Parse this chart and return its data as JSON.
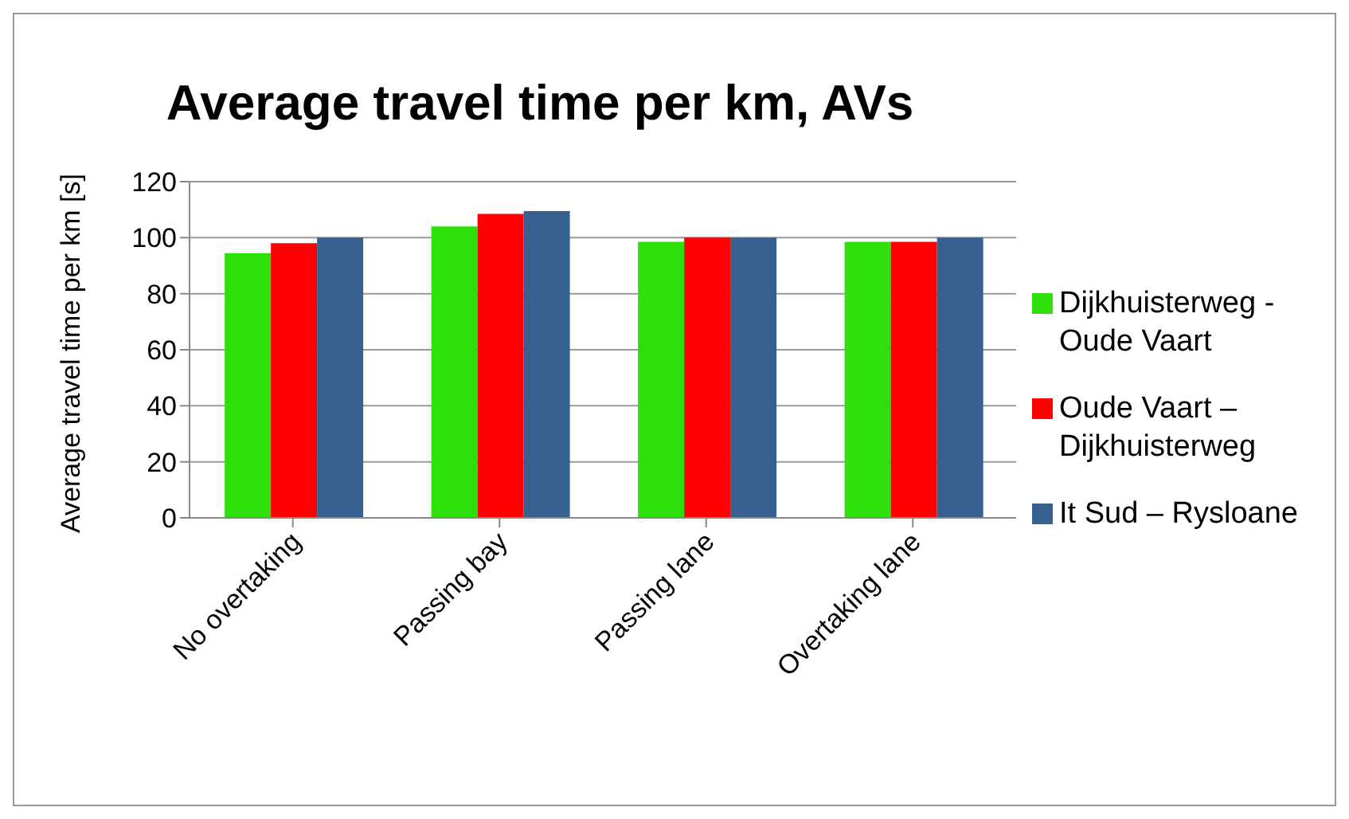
{
  "chart_data": {
    "type": "bar",
    "title": "Average travel time per km, AVs",
    "ylabel": "Average travel time per km [s]",
    "categories": [
      "No overtaking",
      "Passing bay",
      "Passing lane",
      "Overtaking lane"
    ],
    "series": [
      {
        "name": "Dijkhuisterweg - Oude Vaart",
        "color": "#2ee00a",
        "values": [
          94.5,
          104,
          98.5,
          98.5
        ]
      },
      {
        "name": "Oude Vaart – Dijkhuisterweg",
        "color": "#ff0000",
        "values": [
          98,
          108.5,
          100,
          98.5
        ]
      },
      {
        "name": "It Sud – Rysloane",
        "color": "#36608f",
        "values": [
          100,
          109.5,
          100,
          100
        ]
      }
    ],
    "ylim": [
      0,
      120
    ],
    "yticks": [
      0,
      20,
      40,
      60,
      80,
      100,
      120
    ],
    "grid": "y",
    "legend": "right"
  }
}
